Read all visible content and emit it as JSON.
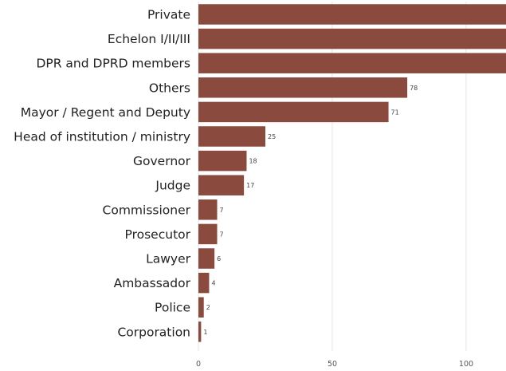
{
  "chart_data": {
    "type": "bar",
    "orientation": "horizontal",
    "categories": [
      "Private",
      "Echelon I/II/III",
      "DPR and DPRD members",
      "Others",
      "Mayor / Regent and Deputy",
      "Head of institution / ministry",
      "Governor",
      "Judge",
      "Commissioner",
      "Prosecutor",
      "Lawyer",
      "Ambassador",
      "Police",
      "Corporation"
    ],
    "values": [
      115,
      115,
      115,
      78,
      71,
      25,
      18,
      17,
      7,
      7,
      6,
      4,
      2,
      1
    ],
    "value_labels": [
      "",
      "",
      "",
      "78",
      "71",
      "25",
      "18",
      "17",
      "7",
      "7",
      "6",
      "4",
      "2",
      "1"
    ],
    "x_ticks": [
      "0",
      "50",
      "100"
    ],
    "xlim": [
      0,
      115
    ],
    "grid": true,
    "bar_color": "#8b4a3e"
  }
}
